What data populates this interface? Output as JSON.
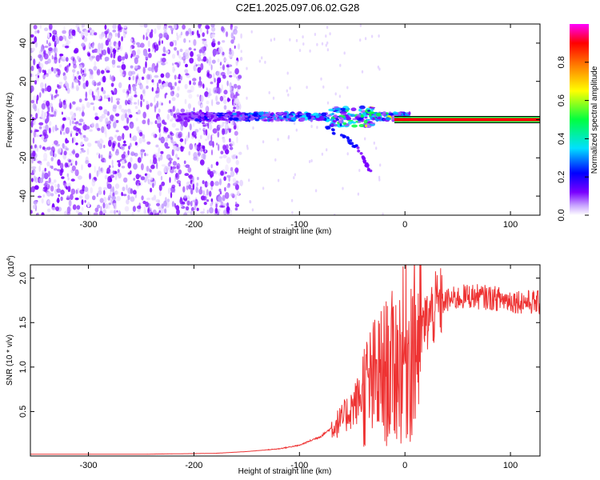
{
  "title": "C2E1.2025.097.06.02.G28",
  "chart_data": [
    {
      "type": "heatmap",
      "xlabel": "Height of straight line (km)",
      "ylabel": "Frequency (Hz)",
      "xlim": [
        -355,
        128
      ],
      "ylim": [
        -50,
        50
      ],
      "xticks": [
        -300,
        -200,
        -100,
        0,
        100
      ],
      "yticks": [
        -40,
        -20,
        0,
        20,
        40
      ],
      "colorbar": {
        "label": "Normalized spectral amplitude",
        "range": [
          0,
          1
        ],
        "ticks": [
          "0.0",
          "0.2",
          "0.4",
          "0.6",
          "0.8"
        ],
        "tick_values": [
          0.0,
          0.2,
          0.4,
          0.6,
          0.8
        ],
        "colors": [
          "#ffffff",
          "#c9a6ff",
          "#7a00ff",
          "#0000ff",
          "#00e0ff",
          "#00ff40",
          "#ffff00",
          "#ff8000",
          "#ff0000",
          "#ff00ff"
        ]
      },
      "features": {
        "noise_region_x": [
          -355,
          -155
        ],
        "signal_band": {
          "x_start": -215,
          "x_end": 128,
          "center_hz": 0
        },
        "tone_line": {
          "x_start": 0,
          "x_end": 128,
          "freq_hz": 0
        },
        "descending_branch": [
          [
            -75,
            -4
          ],
          [
            -55,
            -10
          ],
          [
            -45,
            -15
          ],
          [
            -38,
            -22
          ],
          [
            -32,
            -28
          ]
        ]
      }
    },
    {
      "type": "line",
      "xlabel": "Height of straight line (km)",
      "ylabel": "SNR (10 * v/v)",
      "y_multiplier": "(x10",
      "y_exponent": "4",
      "xlim": [
        -355,
        128
      ],
      "ylim": [
        0,
        2.15
      ],
      "xticks": [
        -300,
        -200,
        -100,
        0,
        100
      ],
      "yticks": [
        "0.5",
        "1.0",
        "1.5",
        "2.0"
      ],
      "ytick_values": [
        0.5,
        1.0,
        1.5,
        2.0
      ],
      "color": "#ee3333",
      "profile_x": [
        -355,
        -250,
        -180,
        -150,
        -120,
        -100,
        -80,
        -60,
        -50,
        -40,
        -30,
        -20,
        -10,
        0,
        10,
        20,
        30,
        40,
        60,
        80,
        100,
        128
      ],
      "profile_y": [
        0.02,
        0.02,
        0.03,
        0.05,
        0.08,
        0.12,
        0.22,
        0.4,
        0.55,
        0.7,
        0.82,
        0.92,
        1.0,
        1.15,
        1.3,
        1.5,
        1.68,
        1.75,
        1.8,
        1.78,
        1.75,
        1.72
      ]
    }
  ]
}
